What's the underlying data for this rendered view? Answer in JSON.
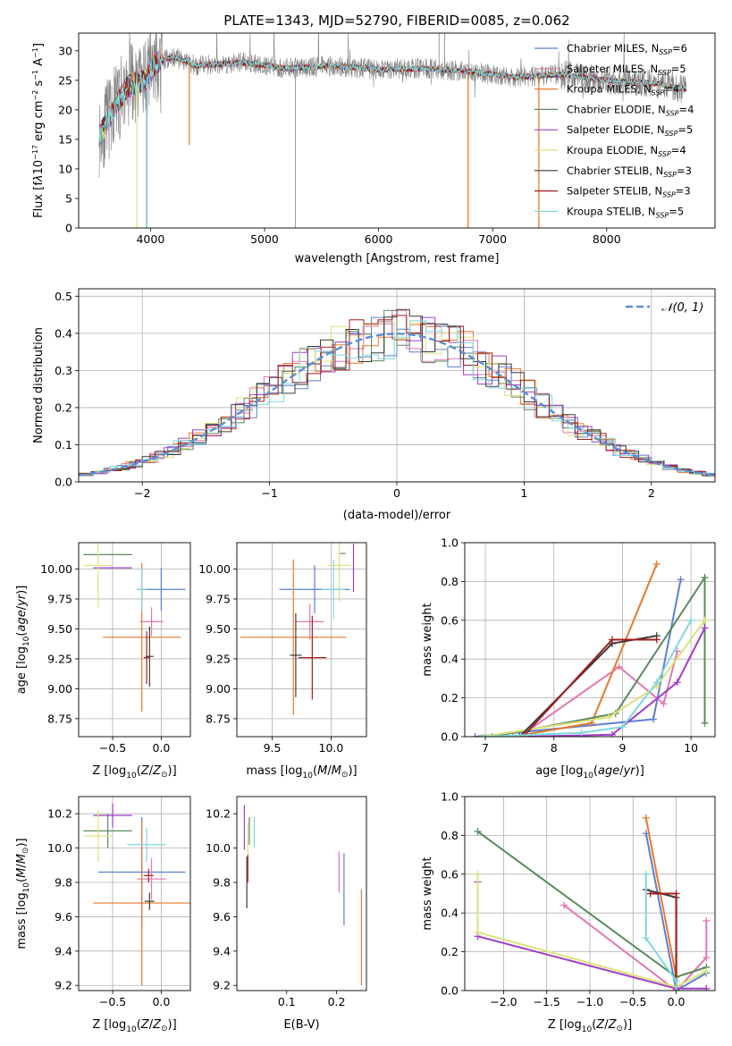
{
  "colors": {
    "chabrier_miles": "#5b7fd3",
    "salpeter_miles": "#e377b2",
    "kroupa_miles": "#e8782a",
    "chabrier_elodie": "#5a8a5e",
    "salpeter_elodie": "#a23ec7",
    "kroupa_elodie": "#dde27a",
    "chabrier_stelib": "#3a3a3a",
    "salpeter_stelib": "#a41e1e",
    "kroupa_stelib": "#7fd8e0",
    "spectrum_data": "#808080",
    "normal_curve": "#5b8ed6",
    "grid": "#b0b0b0"
  },
  "chart_data": [
    {
      "id": "spectrum",
      "type": "line",
      "title": "PLATE=1343, MJD=52790, FIBERID=0085, z=0.062",
      "xlabel": "wavelength [Angstrom, rest frame]",
      "ylabel_html": "Flux [f<tspan font-style='italic'>λ</tspan>10<tspan dy='-5' font-size='8'>−17</tspan><tspan dy='5'> erg cm</tspan><tspan dy='-5' font-size='8'>−2</tspan><tspan dy='5'> s</tspan><tspan dy='-5' font-size='8'>−1</tspan><tspan dy='5'> A</tspan><tspan dy='-5' font-size='8'>−1</tspan><tspan dy='5'>]</tspan>",
      "xlim": [
        3370,
        8950
      ],
      "ylim": [
        0,
        33
      ],
      "xticks": [
        4000,
        5000,
        6000,
        7000,
        8000
      ],
      "yticks": [
        0,
        5,
        10,
        15,
        20,
        25,
        30
      ],
      "grid": false,
      "legend_position": "upper-right",
      "continuum_points": [
        [
          3550,
          15.5
        ],
        [
          3700,
          21
        ],
        [
          3800,
          24
        ],
        [
          3950,
          25
        ],
        [
          4050,
          28
        ],
        [
          4200,
          29
        ],
        [
          4400,
          27.5
        ],
        [
          4800,
          28
        ],
        [
          5200,
          27
        ],
        [
          5600,
          27.5
        ],
        [
          6000,
          26.8
        ],
        [
          6400,
          27
        ],
        [
          6800,
          26.5
        ],
        [
          7200,
          25.5
        ],
        [
          7600,
          26
        ],
        [
          8000,
          25
        ],
        [
          8400,
          24.5
        ],
        [
          8700,
          23.5
        ]
      ],
      "series": [
        {
          "label": "Chabrier MILES, N_SSP=6",
          "color_key": "chabrier_miles"
        },
        {
          "label": "Salpeter MILES, N_SSP=5",
          "color_key": "salpeter_miles"
        },
        {
          "label": "Kroupa MILES, N_SSP=4",
          "color_key": "kroupa_miles"
        },
        {
          "label": "Chabrier ELODIE, N_SSP=4",
          "color_key": "chabrier_elodie"
        },
        {
          "label": "Salpeter ELODIE, N_SSP=5",
          "color_key": "salpeter_elodie"
        },
        {
          "label": "Kroupa ELODIE, N_SSP=4",
          "color_key": "kroupa_elodie"
        },
        {
          "label": "Chabrier STELIB, N_SSP=3",
          "color_key": "chabrier_stelib"
        },
        {
          "label": "Salpeter STELIB, N_SSP=3",
          "color_key": "salpeter_stelib"
        },
        {
          "label": "Kroupa STELIB, N_SSP=5",
          "color_key": "kroupa_stelib"
        }
      ]
    },
    {
      "id": "residuals",
      "type": "line",
      "xlabel": "(data-model)/error",
      "ylabel": "Normed distribution",
      "xlim": [
        -2.5,
        2.5
      ],
      "ylim": [
        0,
        0.52
      ],
      "xticks": [
        -2,
        -1,
        0,
        1,
        2
      ],
      "yticks": [
        0.0,
        0.1,
        0.2,
        0.3,
        0.4,
        0.5
      ],
      "grid": true,
      "legend": "𝒩(0, 1)",
      "legend_position": "upper-right",
      "bin_width": 0.1
    },
    {
      "id": "age_vs_Z",
      "type": "scatter",
      "xlabel": "Z [log10(Z/Z⊙)]",
      "ylabel": "age  [log10(age/yr)]",
      "xlim": [
        -0.85,
        0.3
      ],
      "ylim": [
        8.6,
        10.22
      ],
      "xticks": [
        -0.5,
        0.0
      ],
      "yticks": [
        8.75,
        9.0,
        9.25,
        9.5,
        9.75,
        10.0
      ],
      "grid": true,
      "points": [
        {
          "color_key": "chabrier_miles",
          "x": 0.0,
          "xerr": 0.25,
          "y": 9.83,
          "yerr": 0.18
        },
        {
          "color_key": "salpeter_miles",
          "x": -0.1,
          "xerr": 0.12,
          "y": 9.56,
          "yerr": 0.12
        },
        {
          "color_key": "kroupa_miles",
          "x": -0.2,
          "xerr": 0.4,
          "y": 9.43,
          "yerr": 0.62
        },
        {
          "color_key": "chabrier_elodie",
          "x": -0.55,
          "xerr": 0.25,
          "y": 10.12,
          "yerr": 0.0
        },
        {
          "color_key": "salpeter_elodie",
          "x": -0.5,
          "xerr": 0.2,
          "y": 10.01,
          "yerr": 0.0
        },
        {
          "color_key": "kroupa_elodie",
          "x": -0.65,
          "xerr": 0.15,
          "y": 10.03,
          "yerr": 0.35
        },
        {
          "color_key": "chabrier_stelib",
          "x": -0.12,
          "xerr": 0.04,
          "y": 9.27,
          "yerr": 0.25
        },
        {
          "color_key": "salpeter_stelib",
          "x": -0.15,
          "xerr": 0.03,
          "y": 9.26,
          "yerr": 0.22
        },
        {
          "color_key": "kroupa_stelib",
          "x": -0.2,
          "xerr": 0.05,
          "y": 9.83,
          "yerr": 0.18
        }
      ]
    },
    {
      "id": "age_vs_mass",
      "type": "scatter",
      "xlabel": "mass [log10(M/M⊙)]",
      "ylabel": "",
      "xlim": [
        9.2,
        10.3
      ],
      "ylim": [
        8.6,
        10.22
      ],
      "xticks": [
        9.5,
        10.0
      ],
      "yticks": [
        8.75,
        9.0,
        9.25,
        9.5,
        9.75,
        10.0
      ],
      "grid": true,
      "points": [
        {
          "color_key": "chabrier_miles",
          "x": 9.86,
          "xerr": 0.3,
          "y": 9.83,
          "yerr": 0.2
        },
        {
          "color_key": "salpeter_miles",
          "x": 9.82,
          "xerr": 0.12,
          "y": 9.56,
          "yerr": 0.15
        },
        {
          "color_key": "kroupa_miles",
          "x": 9.68,
          "xerr": 0.45,
          "y": 9.43,
          "yerr": 0.65
        },
        {
          "color_key": "chabrier_elodie",
          "x": 10.1,
          "xerr": 0.0,
          "y": 10.13,
          "yerr": 0.0
        },
        {
          "color_key": "salpeter_elodie",
          "x": 10.19,
          "xerr": 0.0,
          "y": 10.01,
          "yerr": 0.2
        },
        {
          "color_key": "kroupa_elodie",
          "x": 10.07,
          "xerr": 0.1,
          "y": 10.03,
          "yerr": 0.3
        },
        {
          "color_key": "chabrier_stelib",
          "x": 9.7,
          "xerr": 0.05,
          "y": 9.28,
          "yerr": 0.35
        },
        {
          "color_key": "salpeter_stelib",
          "x": 9.84,
          "xerr": 0.12,
          "y": 9.26,
          "yerr": 0.35
        },
        {
          "color_key": "kroupa_stelib",
          "x": 10.02,
          "xerr": 0.1,
          "y": 9.83,
          "yerr": 0.25
        }
      ]
    },
    {
      "id": "massweight_vs_age",
      "type": "line",
      "xlabel": "age  [log10(age/yr)]",
      "ylabel": "mass weight",
      "xlim": [
        6.7,
        10.35
      ],
      "ylim": [
        0,
        1.0
      ],
      "xticks": [
        7,
        8,
        9,
        10
      ],
      "yticks": [
        0.0,
        0.2,
        0.4,
        0.6,
        0.8,
        1.0
      ],
      "grid": true,
      "series": [
        {
          "color_key": "chabrier_miles",
          "x": [
            6.85,
            9.45,
            9.85
          ],
          "y": [
            0.0,
            0.09,
            0.81
          ]
        },
        {
          "color_key": "salpeter_miles",
          "x": [
            7.5,
            8.95,
            9.6,
            9.8
          ],
          "y": [
            0.0,
            0.36,
            0.17,
            0.44
          ]
        },
        {
          "color_key": "kroupa_miles",
          "x": [
            7.4,
            8.55,
            9.5
          ],
          "y": [
            0.0,
            0.07,
            0.89
          ]
        },
        {
          "color_key": "chabrier_elodie",
          "x": [
            7.1,
            8.9,
            10.2,
            10.2
          ],
          "y": [
            0.0,
            0.12,
            0.82,
            0.07
          ]
        },
        {
          "color_key": "salpeter_elodie",
          "x": [
            7.6,
            8.85,
            9.8,
            10.2
          ],
          "y": [
            0.0,
            0.01,
            0.28,
            0.56
          ]
        },
        {
          "color_key": "kroupa_elodie",
          "x": [
            6.95,
            8.8,
            9.5,
            10.2
          ],
          "y": [
            0.0,
            0.1,
            0.26,
            0.6
          ]
        },
        {
          "color_key": "chabrier_stelib",
          "x": [
            7.5,
            8.85,
            9.5
          ],
          "y": [
            0.0,
            0.48,
            0.52
          ]
        },
        {
          "color_key": "salpeter_stelib",
          "x": [
            7.55,
            8.85,
            9.5
          ],
          "y": [
            0.0,
            0.5,
            0.5
          ]
        },
        {
          "color_key": "kroupa_stelib",
          "x": [
            7.0,
            8.4,
            9.0,
            9.5,
            10.0
          ],
          "y": [
            0.0,
            0.02,
            0.05,
            0.28,
            0.6
          ]
        }
      ]
    },
    {
      "id": "mass_vs_Z",
      "type": "scatter",
      "xlabel": "Z [log10(Z/Z⊙)]",
      "ylabel": "mass [log10(M/M⊙)]",
      "xlim": [
        -0.85,
        0.3
      ],
      "ylim": [
        9.17,
        10.3
      ],
      "xticks": [
        -0.5,
        0.0
      ],
      "yticks": [
        9.2,
        9.4,
        9.6,
        9.8,
        10.0,
        10.2
      ],
      "grid": true,
      "points": [
        {
          "color_key": "chabrier_miles",
          "x": -0.2,
          "xerr": 0.45,
          "y": 9.86,
          "yerr": 0.32
        },
        {
          "color_key": "salpeter_miles",
          "x": -0.1,
          "xerr": 0.15,
          "y": 9.82,
          "yerr": 0.12
        },
        {
          "color_key": "kroupa_miles",
          "x": -0.2,
          "xerr": 0.5,
          "y": 9.68,
          "yerr": 0.48
        },
        {
          "color_key": "chabrier_elodie",
          "x": -0.55,
          "xerr": 0.25,
          "y": 10.1,
          "yerr": 0.1
        },
        {
          "color_key": "salpeter_elodie",
          "x": -0.5,
          "xerr": 0.2,
          "y": 10.19,
          "yerr": 0.07
        },
        {
          "color_key": "kroupa_elodie",
          "x": -0.65,
          "xerr": 0.15,
          "y": 10.07,
          "yerr": 0.15
        },
        {
          "color_key": "chabrier_stelib",
          "x": -0.12,
          "xerr": 0.05,
          "y": 9.69,
          "yerr": 0.05
        },
        {
          "color_key": "salpeter_stelib",
          "x": -0.13,
          "xerr": 0.05,
          "y": 9.84,
          "yerr": 0.04
        },
        {
          "color_key": "kroupa_stelib",
          "x": -0.15,
          "xerr": 0.2,
          "y": 10.02,
          "yerr": 0.1
        }
      ]
    },
    {
      "id": "mass_vs_ebv",
      "type": "scatter",
      "xlabel": "E(B-V)",
      "ylabel": "",
      "xlim": [
        0.0,
        0.26
      ],
      "ylim": [
        9.17,
        10.3
      ],
      "xticks": [
        0.1,
        0.2
      ],
      "yticks": [
        9.2,
        9.4,
        9.6,
        9.8,
        10.0,
        10.2
      ],
      "grid": false,
      "points": [
        {
          "color_key": "chabrier_miles",
          "x": 0.215,
          "xerr": 0.0,
          "y": 9.76,
          "yerr": 0.21
        },
        {
          "color_key": "salpeter_miles",
          "x": 0.205,
          "xerr": 0.0,
          "y": 9.86,
          "yerr": 0.12
        },
        {
          "color_key": "kroupa_miles",
          "x": 0.25,
          "xerr": 0.0,
          "y": 9.48,
          "yerr": 0.28
        },
        {
          "color_key": "chabrier_elodie",
          "x": 0.025,
          "xerr": 0.0,
          "y": 10.1,
          "yerr": 0.08
        },
        {
          "color_key": "salpeter_elodie",
          "x": 0.015,
          "xerr": 0.0,
          "y": 10.12,
          "yerr": 0.13
        },
        {
          "color_key": "kroupa_elodie",
          "x": 0.022,
          "xerr": 0.0,
          "y": 10.05,
          "yerr": 0.1
        },
        {
          "color_key": "chabrier_stelib",
          "x": 0.02,
          "xerr": 0.0,
          "y": 9.8,
          "yerr": 0.15
        },
        {
          "color_key": "salpeter_stelib",
          "x": 0.022,
          "xerr": 0.0,
          "y": 9.88,
          "yerr": 0.08
        },
        {
          "color_key": "kroupa_stelib",
          "x": 0.035,
          "xerr": 0.0,
          "y": 10.09,
          "yerr": 0.09
        }
      ]
    },
    {
      "id": "massweight_vs_Z",
      "type": "line",
      "xlabel": "Z [log10(Z/Z⊙)]",
      "ylabel": "mass weight",
      "xlim": [
        -2.45,
        0.45
      ],
      "ylim": [
        0,
        1.0
      ],
      "xticks": [
        -2.0,
        -1.5,
        -1.0,
        -0.5,
        0.0
      ],
      "yticks": [
        0.0,
        0.2,
        0.4,
        0.6,
        0.8,
        1.0
      ],
      "grid": true,
      "series": [
        {
          "color_key": "chabrier_miles",
          "x": [
            -0.35,
            0.0,
            0.35
          ],
          "y": [
            0.81,
            0.0,
            0.09
          ]
        },
        {
          "color_key": "salpeter_miles",
          "x": [
            -1.3,
            0.0,
            0.35,
            0.35
          ],
          "y": [
            0.44,
            0.0,
            0.17,
            0.36
          ]
        },
        {
          "color_key": "kroupa_miles",
          "x": [
            -0.35,
            0.0,
            0.0
          ],
          "y": [
            0.89,
            0.07,
            0.02
          ]
        },
        {
          "color_key": "chabrier_elodie",
          "x": [
            -2.3,
            0.0,
            0.35
          ],
          "y": [
            0.82,
            0.07,
            0.12
          ]
        },
        {
          "color_key": "salpeter_elodie",
          "x": [
            -2.3,
            -2.3,
            0.0,
            0.35
          ],
          "y": [
            0.56,
            0.28,
            0.01,
            0.01
          ]
        },
        {
          "color_key": "kroupa_elodie",
          "x": [
            -2.3,
            -2.3,
            0.0,
            0.35
          ],
          "y": [
            0.6,
            0.3,
            0.02,
            0.1
          ]
        },
        {
          "color_key": "chabrier_stelib",
          "x": [
            -0.35,
            0.0,
            0.0
          ],
          "y": [
            0.52,
            0.48,
            0.0
          ]
        },
        {
          "color_key": "salpeter_stelib",
          "x": [
            -0.3,
            0.0,
            0.0
          ],
          "y": [
            0.5,
            0.5,
            0.0
          ]
        },
        {
          "color_key": "kroupa_stelib",
          "x": [
            -0.35,
            -0.35,
            0.0,
            0.0
          ],
          "y": [
            0.6,
            0.27,
            0.05,
            0.0
          ]
        }
      ]
    }
  ]
}
